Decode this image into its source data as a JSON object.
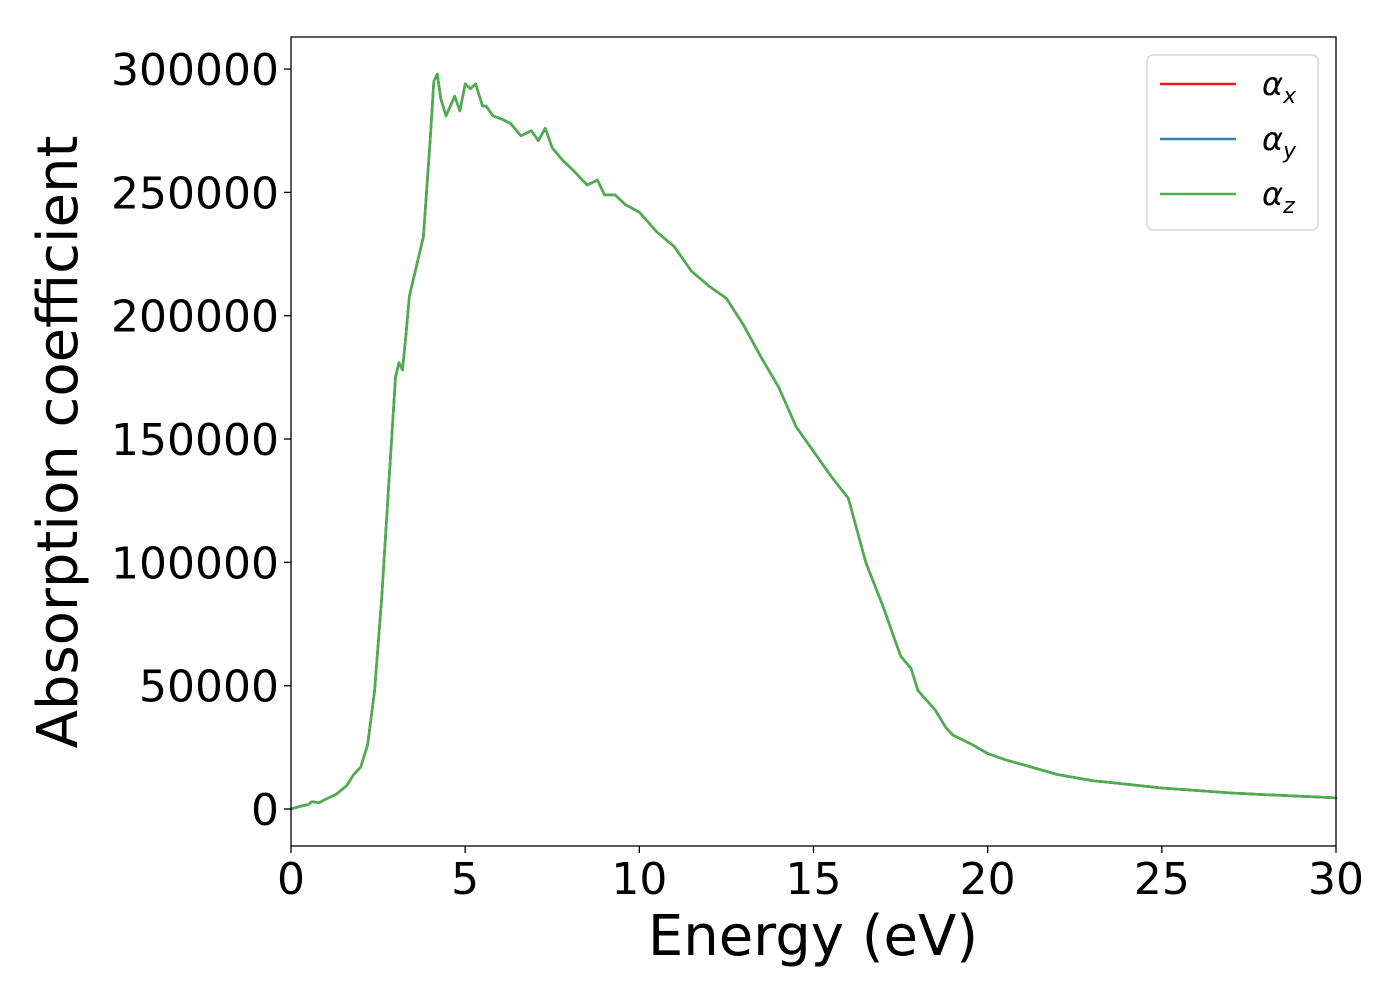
{
  "chart_data": {
    "type": "line",
    "xlabel": "Energy (eV)",
    "ylabel": "Absorption coefficient",
    "xlim": [
      0,
      30
    ],
    "ylim": [
      -15000,
      313000
    ],
    "grid": false,
    "legend_position": "top-right",
    "x_ticks": [
      0,
      5,
      10,
      15,
      20,
      25,
      30
    ],
    "x_tick_labels": [
      "0",
      "5",
      "10",
      "15",
      "20",
      "25",
      "30"
    ],
    "y_ticks": [
      0,
      50000,
      100000,
      150000,
      200000,
      250000,
      300000
    ],
    "y_tick_labels": [
      "0",
      "50000",
      "100000",
      "150000",
      "200000",
      "250000",
      "300000"
    ],
    "legend": [
      {
        "symbol": "α",
        "subscript": "x",
        "color": "#e41a1c"
      },
      {
        "symbol": "α",
        "subscript": "y",
        "color": "#377eb8"
      },
      {
        "symbol": "α",
        "subscript": "z",
        "color": "#4daf4a"
      }
    ],
    "x": [
      0,
      0.3,
      0.5,
      0.6,
      0.8,
      1.0,
      1.3,
      1.6,
      1.8,
      2.0,
      2.2,
      2.4,
      2.6,
      2.8,
      3.0,
      3.1,
      3.2,
      3.3,
      3.4,
      3.6,
      3.8,
      4.0,
      4.1,
      4.2,
      4.3,
      4.45,
      4.7,
      4.85,
      5.0,
      5.15,
      5.3,
      5.5,
      5.6,
      5.8,
      6.0,
      6.3,
      6.6,
      6.9,
      7.1,
      7.3,
      7.5,
      7.8,
      8.1,
      8.5,
      8.8,
      9.0,
      9.3,
      9.6,
      10.0,
      10.5,
      11.0,
      11.5,
      12.0,
      12.5,
      13.0,
      13.5,
      14.0,
      14.5,
      15.0,
      15.5,
      16.0,
      16.5,
      17.0,
      17.5,
      17.8,
      18.0,
      18.5,
      18.8,
      19.0,
      19.5,
      20.0,
      20.5,
      21.0,
      22.0,
      23.0,
      24.0,
      25.0,
      26.0,
      27.0,
      28.0,
      29.0,
      30.0
    ],
    "series": [
      {
        "values": [
          0,
          1200,
          1800,
          3000,
          2500,
          4000,
          6000,
          9500,
          14000,
          17000,
          26000,
          48000,
          85000,
          130000,
          175000,
          181000,
          178000,
          192000,
          208000,
          220000,
          232000,
          272000,
          295000,
          298000,
          288000,
          281000,
          289000,
          283000,
          294000,
          292000,
          294000,
          285000,
          285000,
          281000,
          280000,
          278000,
          273000,
          275000,
          271000,
          276000,
          268000,
          263000,
          259000,
          253000,
          255000,
          249000,
          249000,
          245000,
          242000,
          234000,
          228000,
          218000,
          212000,
          207000,
          196000,
          183000,
          171000,
          155000,
          145000,
          135000,
          126000,
          100000,
          82000,
          62000,
          57000,
          48000,
          40000,
          33000,
          30000,
          26500,
          22500,
          20000,
          18000,
          14000,
          11500,
          10000,
          8500,
          7500,
          6500,
          5800,
          5200,
          4500
        ]
      },
      {
        "values": [
          0,
          1200,
          1800,
          3000,
          2500,
          4000,
          6000,
          9500,
          14000,
          17000,
          26000,
          48000,
          85000,
          130000,
          175000,
          181000,
          178000,
          192000,
          208000,
          220000,
          232000,
          272000,
          295000,
          298000,
          288000,
          281000,
          289000,
          283000,
          294000,
          292000,
          294000,
          285000,
          285000,
          281000,
          280000,
          278000,
          273000,
          275000,
          271000,
          276000,
          268000,
          263000,
          259000,
          253000,
          255000,
          249000,
          249000,
          245000,
          242000,
          234000,
          228000,
          218000,
          212000,
          207000,
          196000,
          183000,
          171000,
          155000,
          145000,
          135000,
          126000,
          100000,
          82000,
          62000,
          57000,
          48000,
          40000,
          33000,
          30000,
          26500,
          22500,
          20000,
          18000,
          14000,
          11500,
          10000,
          8500,
          7500,
          6500,
          5800,
          5200,
          4500
        ]
      },
      {
        "values": [
          0,
          1200,
          1800,
          3000,
          2500,
          4000,
          6000,
          9500,
          14000,
          17000,
          26000,
          48000,
          85000,
          130000,
          175000,
          181000,
          178000,
          192000,
          208000,
          220000,
          232000,
          272000,
          295000,
          298000,
          288000,
          281000,
          289000,
          283000,
          294000,
          292000,
          294000,
          285000,
          285000,
          281000,
          280000,
          278000,
          273000,
          275000,
          271000,
          276000,
          268000,
          263000,
          259000,
          253000,
          255000,
          249000,
          249000,
          245000,
          242000,
          234000,
          228000,
          218000,
          212000,
          207000,
          196000,
          183000,
          171000,
          155000,
          145000,
          135000,
          126000,
          100000,
          82000,
          62000,
          57000,
          48000,
          40000,
          33000,
          30000,
          26500,
          22500,
          20000,
          18000,
          14000,
          11500,
          10000,
          8500,
          7500,
          6500,
          5800,
          5200,
          4500
        ]
      }
    ]
  }
}
